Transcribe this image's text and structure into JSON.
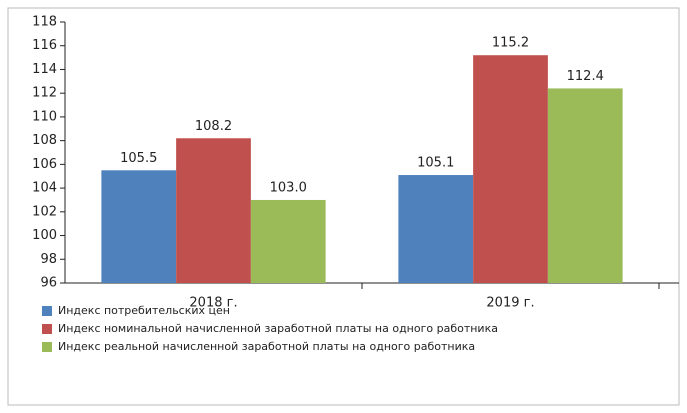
{
  "chart_data": {
    "type": "bar",
    "categories": [
      "2018 г.",
      "2019 г."
    ],
    "series": [
      {
        "name": "Индекс потребительских цен",
        "color": "#4f81bd",
        "values": [
          105.5,
          105.1
        ],
        "value_labels": [
          "105.5",
          "105.1"
        ]
      },
      {
        "name": "Индекс номинальной начисленной заработной платы на одного работника",
        "color": "#c0504d",
        "values": [
          108.2,
          115.2
        ],
        "value_labels": [
          "108.2",
          "115.2"
        ]
      },
      {
        "name": "Индекс реальной начисленной заработной платы на одного работника",
        "color": "#9bbb59",
        "values": [
          103.0,
          112.4
        ],
        "value_labels": [
          "103.0",
          "112.4"
        ]
      }
    ],
    "ylim": [
      96,
      118
    ],
    "yticks": [
      96,
      98,
      100,
      102,
      104,
      106,
      108,
      110,
      112,
      114,
      116,
      118
    ],
    "grid": false,
    "legend": "bottom-left"
  }
}
